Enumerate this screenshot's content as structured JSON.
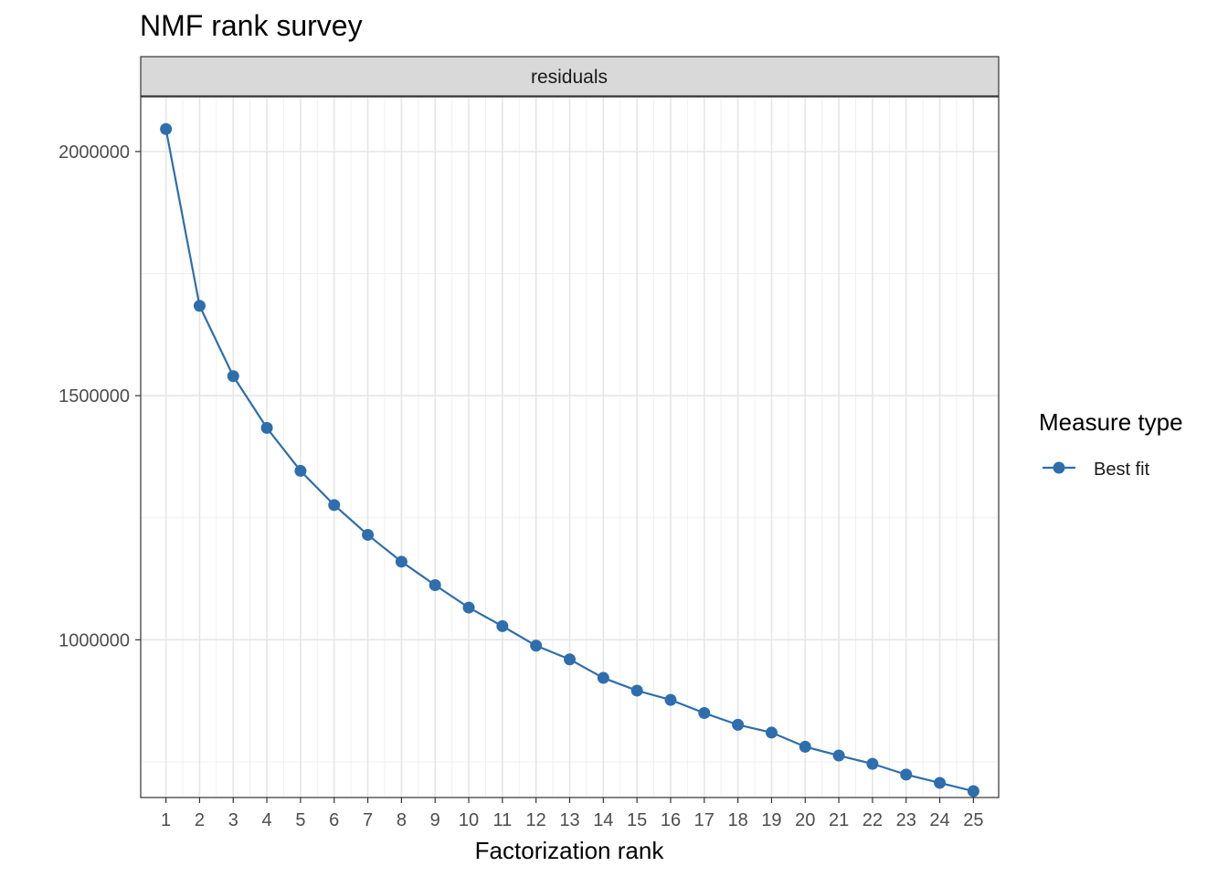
{
  "chart_data": {
    "type": "line",
    "title": "NMF rank survey",
    "facet_label": "residuals",
    "xlabel": "Factorization rank",
    "ylabel": "",
    "x": [
      1,
      2,
      3,
      4,
      5,
      6,
      7,
      8,
      9,
      10,
      11,
      12,
      13,
      14,
      15,
      16,
      17,
      18,
      19,
      20,
      21,
      22,
      23,
      24,
      25
    ],
    "x_tick_labels": [
      "1",
      "2",
      "3",
      "4",
      "5",
      "6",
      "7",
      "8",
      "9",
      "10",
      "11",
      "12",
      "13",
      "14",
      "15",
      "16",
      "17",
      "18",
      "19",
      "20",
      "21",
      "22",
      "23",
      "24",
      "25"
    ],
    "y_ticks": [
      1000000,
      1500000,
      2000000
    ],
    "y_tick_labels": [
      "1000000",
      "1500000",
      "2000000"
    ],
    "ylim": [
      677000,
      2112000
    ],
    "xlim": [
      0.25,
      25.75
    ],
    "grid": true,
    "legend": {
      "title": "Measure type",
      "position": "right",
      "entries": [
        "Best fit"
      ]
    },
    "series": [
      {
        "name": "Best fit",
        "color": "#2e6ead",
        "values": [
          2046000,
          1684000,
          1540000,
          1434000,
          1346000,
          1276000,
          1215000,
          1160000,
          1112000,
          1066000,
          1028000,
          988000,
          960000,
          922000,
          896000,
          877000,
          850000,
          826000,
          810000,
          781000,
          763000,
          746000,
          724000,
          707000,
          690000
        ]
      }
    ]
  }
}
